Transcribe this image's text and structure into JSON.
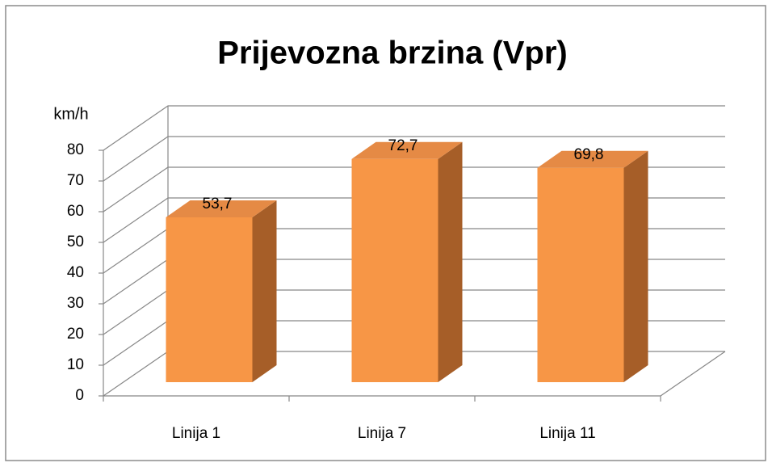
{
  "chart_data": {
    "type": "bar3d",
    "title": "Prijevozna brzina (Vpr)",
    "y_label": "km/h",
    "categories": [
      "Linija 1",
      "Linija 7",
      "Linija 11"
    ],
    "values": [
      53.7,
      72.7,
      69.8
    ],
    "value_labels": [
      "53,7",
      "72,7",
      "69,8"
    ],
    "color": "#f79646",
    "ylim": [
      0,
      80
    ],
    "yticks": [
      0,
      10,
      20,
      30,
      40,
      50,
      60,
      70,
      80
    ],
    "grid": true
  }
}
